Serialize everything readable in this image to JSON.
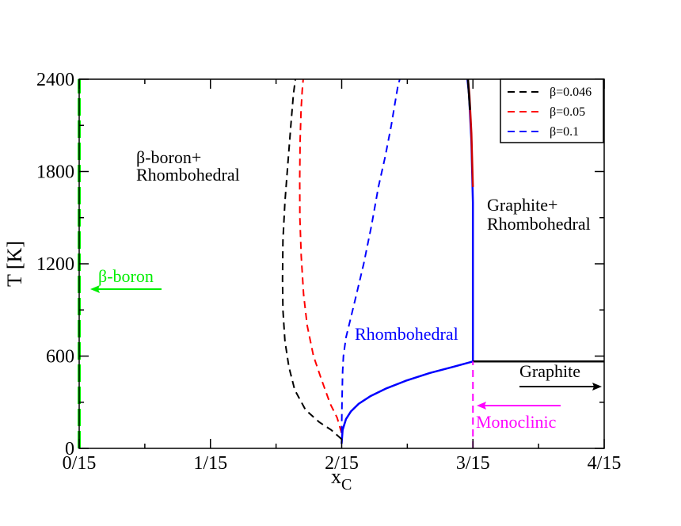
{
  "chart_data": {
    "type": "line",
    "title": "",
    "xlabel_main": "x",
    "xlabel_sub": "C",
    "ylabel": "T [K]",
    "xlim": [
      0,
      0.26667
    ],
    "ylim": [
      0,
      2400
    ],
    "x_ticks": [
      {
        "value": 0.0,
        "label": "0/15"
      },
      {
        "value": 0.066667,
        "label": "1/15"
      },
      {
        "value": 0.133333,
        "label": "2/15"
      },
      {
        "value": 0.2,
        "label": "3/15"
      },
      {
        "value": 0.266667,
        "label": "4/15"
      }
    ],
    "y_ticks": [
      {
        "value": 0,
        "label": "0"
      },
      {
        "value": 600,
        "label": "600"
      },
      {
        "value": 1200,
        "label": "1200"
      },
      {
        "value": 1800,
        "label": "1800"
      },
      {
        "value": 2400,
        "label": "2400"
      }
    ],
    "grid": false,
    "legend_position": "top-right",
    "series": [
      {
        "name": "β=0.046",
        "color": "#000000",
        "dash": true,
        "x": [
          0.1333,
          0.128,
          0.122,
          0.115,
          0.1095,
          0.1065,
          0.1045,
          0.1035,
          0.1033,
          0.1035,
          0.1045,
          0.106,
          0.1075,
          0.1088,
          0.1098
        ],
        "y": [
          60,
          120,
          170,
          250,
          380,
          530,
          700,
          900,
          1100,
          1350,
          1600,
          1850,
          2100,
          2300,
          2400
        ]
      },
      {
        "name": "β=0.05",
        "color": "#ff0000",
        "dash": true,
        "x": [
          0.1333,
          0.131,
          0.1275,
          0.123,
          0.119,
          0.1158,
          0.114,
          0.1128,
          0.1121,
          0.112,
          0.1122,
          0.1127,
          0.1133,
          0.1138
        ],
        "y": [
          100,
          200,
          290,
          450,
          600,
          800,
          1000,
          1250,
          1500,
          1750,
          2000,
          2200,
          2330,
          2400
        ]
      },
      {
        "name": "β=0.1",
        "color": "#0000ff",
        "dash": true,
        "x": [
          0.1333,
          0.1335,
          0.1338,
          0.1342,
          0.1355,
          0.1378,
          0.1408,
          0.1445,
          0.1485,
          0.152,
          0.1555,
          0.1585,
          0.1605,
          0.1618,
          0.1628
        ],
        "y": [
          100,
          300,
          500,
          600,
          720,
          840,
          1000,
          1200,
          1450,
          1700,
          1900,
          2100,
          2250,
          2350,
          2400
        ]
      }
    ],
    "boundaries": [
      {
        "name": "rhombohedral-lower",
        "color": "#0000ff",
        "x": [
          0.1333,
          0.1338,
          0.1355,
          0.138,
          0.142,
          0.148,
          0.156,
          0.166,
          0.178,
          0.19,
          0.2
        ],
        "y": [
          30,
          120,
          190,
          240,
          290,
          340,
          390,
          440,
          490,
          530,
          565
        ]
      },
      {
        "name": "rhombohedral-right",
        "color": "#0000ff",
        "x": [
          0.2,
          0.2,
          0.1992,
          0.198,
          0.1972
        ],
        "y": [
          565,
          1600,
          2000,
          2300,
          2400
        ]
      },
      {
        "name": "rhombohedral-right-red",
        "color": "#cc0000",
        "x": [
          0.2,
          0.1992,
          0.1982,
          0.1975
        ],
        "y": [
          1700,
          2050,
          2300,
          2400
        ]
      },
      {
        "name": "rhombohedral-right-black",
        "color": "#000000",
        "x": [
          0.1985,
          0.1978,
          0.1975
        ],
        "y": [
          2200,
          2330,
          2400
        ]
      },
      {
        "name": "graphite-monoclinic",
        "color": "#000000",
        "x": [
          0.2,
          0.26667
        ],
        "y": [
          565,
          565
        ]
      },
      {
        "name": "beta-boron",
        "color": "#00ee00",
        "x": [
          0.0,
          0.0
        ],
        "y": [
          0,
          2400
        ]
      }
    ],
    "monoclinic_line": {
      "color": "#ff00ff",
      "x": 0.2,
      "y": [
        0,
        565
      ]
    },
    "annotations": [
      {
        "text": "β-boron+",
        "color": "#000000"
      },
      {
        "text": "Rhombohedral",
        "color": "#000000"
      },
      {
        "text": "Graphite+",
        "color": "#000000"
      },
      {
        "text": "Rhombohedral",
        "color": "#000000"
      },
      {
        "text": "β-boron",
        "color": "#00ee00"
      },
      {
        "text": "Rhombohedral",
        "color": "#0000ff"
      },
      {
        "text": "Graphite",
        "color": "#000000"
      },
      {
        "text": "Monoclinic",
        "color": "#ff00ff"
      }
    ]
  }
}
